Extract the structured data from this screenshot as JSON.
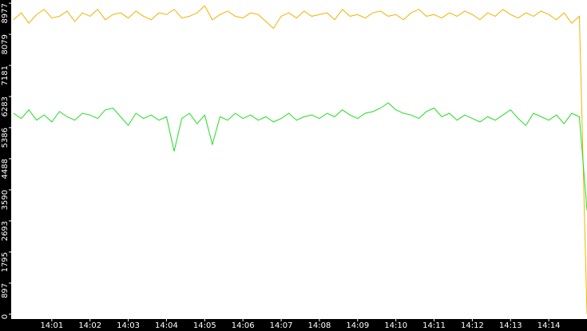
{
  "chart_data": {
    "type": "line",
    "x": [
      840,
      840.2,
      840.4,
      840.6,
      840.8,
      841,
      841.2,
      841.4,
      841.6,
      841.8,
      842,
      842.2,
      842.4,
      842.6,
      842.8,
      843,
      843.2,
      843.4,
      843.6,
      843.8,
      844,
      844.2,
      844.4,
      844.6,
      844.8,
      845,
      845.2,
      845.4,
      845.6,
      845.8,
      846,
      846.2,
      846.4,
      846.6,
      846.8,
      847,
      847.2,
      847.4,
      847.6,
      847.8,
      848,
      848.2,
      848.4,
      848.6,
      848.8,
      849,
      849.2,
      849.4,
      849.6,
      849.8,
      850,
      850.2,
      850.4,
      850.6,
      850.8,
      851,
      851.2,
      851.4,
      851.6,
      851.8,
      852,
      852.2,
      852.4,
      852.6,
      852.8,
      853,
      853.2,
      853.4,
      853.6,
      853.8,
      854,
      854.2,
      854.4,
      854.6,
      854.8,
      855
    ],
    "series": [
      {
        "color": "#f0b400",
        "values": [
          8500,
          8700,
          8400,
          8650,
          8800,
          8550,
          8600,
          8750,
          8450,
          8700,
          8600,
          8800,
          8500,
          8650,
          8700,
          8550,
          8750,
          8600,
          8500,
          8700,
          8650,
          8800,
          8550,
          8600,
          8700,
          8900,
          8500,
          8650,
          8750,
          8600,
          8550,
          8700,
          8650,
          8450,
          8250,
          8600,
          8700,
          8550,
          8750,
          8600,
          8650,
          8700,
          8500,
          8800,
          8600,
          8650,
          8550,
          8700,
          8750,
          8600,
          8650,
          8500,
          8700,
          8800,
          8600,
          8650,
          8550,
          8700,
          8600,
          8750,
          8650,
          8500,
          8700,
          8600,
          8800,
          8650,
          8550,
          8700,
          8600,
          8750,
          8650,
          8500,
          8700,
          8400,
          8600,
          0
        ]
      },
      {
        "color": "#22dd22",
        "values": [
          5800,
          5650,
          5900,
          5600,
          5750,
          5550,
          5850,
          5700,
          5600,
          5800,
          5750,
          5650,
          5900,
          5950,
          5700,
          5450,
          5800,
          5650,
          5750,
          5600,
          5700,
          4700,
          5650,
          5800,
          5500,
          5750,
          4900,
          5700,
          5600,
          5800,
          5650,
          5750,
          5600,
          5700,
          5550,
          5650,
          5800,
          5600,
          5700,
          5750,
          5650,
          5800,
          5700,
          5900,
          5750,
          5650,
          5800,
          5850,
          5950,
          6100,
          5900,
          5800,
          5750,
          5650,
          5850,
          5950,
          5700,
          5800,
          5600,
          5750,
          5650,
          5550,
          5700,
          5600,
          5750,
          5900,
          5650,
          5450,
          5800,
          5700,
          5600,
          5750,
          5500,
          5800,
          5700,
          3000
        ]
      }
    ],
    "xlim": [
      840,
      855
    ],
    "xticks": [
      {
        "value": 841,
        "label": "14:01"
      },
      {
        "value": 842,
        "label": "14:02"
      },
      {
        "value": 843,
        "label": "14:03"
      },
      {
        "value": 844,
        "label": "14:04"
      },
      {
        "value": 845,
        "label": "14:05"
      },
      {
        "value": 846,
        "label": "14:06"
      },
      {
        "value": 847,
        "label": "14:07"
      },
      {
        "value": 848,
        "label": "14:08"
      },
      {
        "value": 849,
        "label": "14:09"
      },
      {
        "value": 850,
        "label": "14:10"
      },
      {
        "value": 851,
        "label": "14:11"
      },
      {
        "value": 852,
        "label": "14:12"
      },
      {
        "value": 853,
        "label": "14:13"
      },
      {
        "value": 854,
        "label": "14:14"
      }
    ],
    "ylim": [
      -140,
      9070
    ],
    "yticks": [
      0,
      897,
      1795,
      2693,
      3590,
      4488,
      5386,
      6283,
      7181,
      8079,
      8977
    ]
  }
}
